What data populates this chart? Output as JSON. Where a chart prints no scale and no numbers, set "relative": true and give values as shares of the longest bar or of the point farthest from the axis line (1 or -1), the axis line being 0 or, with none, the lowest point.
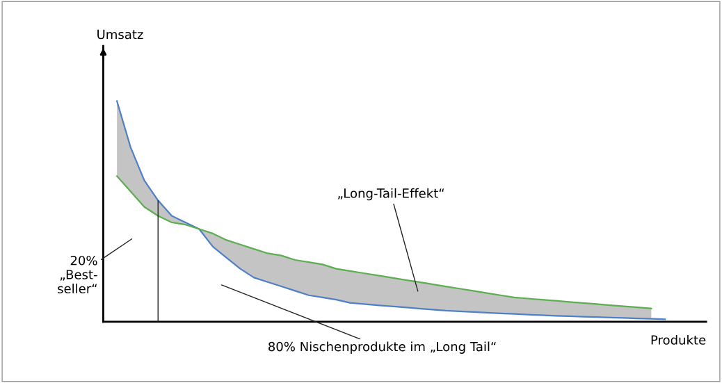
{
  "chart_data": {
    "type": "line",
    "relative": true,
    "xlabel": "Produkte",
    "ylabel": "Umsatz",
    "categories": [
      null,
      null,
      null,
      null,
      null,
      null,
      null,
      null,
      null,
      null,
      null,
      null,
      null,
      null,
      null,
      null,
      null,
      null,
      null,
      null,
      null,
      null,
      null,
      null,
      null,
      null,
      null,
      null,
      null,
      null,
      null,
      null,
      null,
      null,
      null,
      null,
      null,
      null,
      null,
      null,
      null
    ],
    "series": [
      {
        "color": "#4f7fc8",
        "values": [
          1.0,
          0.79,
          0.64,
          0.55,
          0.48,
          0.45,
          0.42,
          0.34,
          0.29,
          0.24,
          0.2,
          0.18,
          0.16,
          0.14,
          0.12,
          0.11,
          0.1,
          0.086,
          0.08,
          0.075,
          0.07,
          0.065,
          0.06,
          0.055,
          0.05,
          0.047,
          0.044,
          0.041,
          0.038,
          0.035,
          0.032,
          0.03,
          0.027,
          0.025,
          0.023,
          0.021,
          0.019,
          0.017,
          0.015,
          0.013,
          0.011
        ]
      },
      {
        "color": "#5cae50",
        "values": [
          0.66,
          0.59,
          0.52,
          0.48,
          0.45,
          0.44,
          0.42,
          0.4,
          0.37,
          0.35,
          0.33,
          0.31,
          0.3,
          0.28,
          0.27,
          0.26,
          0.24,
          0.23,
          0.22,
          0.21,
          0.2,
          0.19,
          0.18,
          0.17,
          0.16,
          0.15,
          0.14,
          0.13,
          0.12,
          0.11,
          0.105,
          0.1,
          0.095,
          0.09,
          0.085,
          0.08,
          0.075,
          0.07,
          0.065,
          0.06,
          null
        ],
        "lower": [
          1.0,
          0.79,
          0.64,
          0.55,
          0.48,
          0.45,
          0.42,
          0.34,
          0.29,
          0.24,
          0.2,
          0.18,
          0.16,
          0.14,
          0.12,
          0.11,
          0.1,
          0.086,
          0.08,
          0.075,
          0.07,
          0.065,
          0.06,
          0.055,
          0.05,
          0.047,
          0.044,
          0.041,
          0.038,
          0.035,
          0.032,
          0.03,
          0.027,
          0.025,
          0.023,
          0.021,
          0.019,
          0.017,
          0.015,
          0.013,
          null
        ],
        "upper": [
          0.66,
          0.59,
          0.52,
          0.48,
          0.45,
          0.44,
          0.42,
          0.4,
          0.37,
          0.35,
          0.33,
          0.31,
          0.3,
          0.28,
          0.27,
          0.26,
          0.24,
          0.23,
          0.22,
          0.21,
          0.2,
          0.19,
          0.18,
          0.17,
          0.16,
          0.15,
          0.14,
          0.13,
          0.12,
          0.11,
          0.105,
          0.1,
          0.095,
          0.09,
          0.085,
          0.08,
          0.075,
          0.07,
          0.065,
          0.06,
          null
        ]
      }
    ],
    "annotations": [
      "„Long-Tail-Effekt“",
      "20%\n„Best-\nseller“",
      "80% Nischenprodukte im „Long Tail“"
    ],
    "marker": "none",
    "line_style": "solid"
  }
}
